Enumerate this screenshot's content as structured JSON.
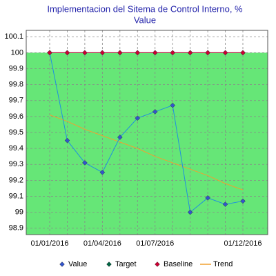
{
  "chart_data": {
    "type": "line",
    "title": "Implementacion del Sitema de Control Interno, %",
    "subtitle": "Value",
    "categories": [
      "01/01/2016",
      null,
      null,
      "01/04/2016",
      null,
      null,
      "01/07/2016",
      null,
      null,
      null,
      null,
      "01/12/2016"
    ],
    "series": [
      {
        "name": "Value",
        "color": "#1e90e0",
        "marker_color": "#3355cc",
        "marker": "diamond",
        "values": [
          100,
          99.45,
          99.31,
          99.25,
          99.47,
          99.59,
          99.63,
          99.67,
          99.0,
          99.09,
          99.05,
          99.07
        ]
      },
      {
        "name": "Target",
        "color": "#006644",
        "marker_color": "#006644",
        "marker": "diamond",
        "values": [
          100,
          100,
          100,
          100,
          100,
          100,
          100,
          100,
          100,
          100,
          100,
          100
        ]
      },
      {
        "name": "Baseline",
        "color": "#cc0033",
        "marker_color": "#cc0033",
        "marker": "diamond",
        "fill": "#66e677",
        "values": [
          100,
          100,
          100,
          100,
          100,
          100,
          100,
          100,
          100,
          100,
          100,
          100
        ]
      },
      {
        "name": "Trend",
        "color": "#f0a030",
        "marker": "none",
        "values": [
          99.61,
          99.57,
          99.52,
          99.48,
          99.44,
          99.4,
          99.35,
          99.31,
          99.27,
          99.23,
          99.18,
          99.14
        ]
      }
    ],
    "ylim": [
      98.86,
      100.14
    ],
    "yticks": [
      98.9,
      99,
      99.1,
      99.2,
      99.3,
      99.4,
      99.5,
      99.6,
      99.7,
      99.8,
      99.9,
      100,
      100.1
    ],
    "grid": true,
    "legend": "bottom"
  }
}
